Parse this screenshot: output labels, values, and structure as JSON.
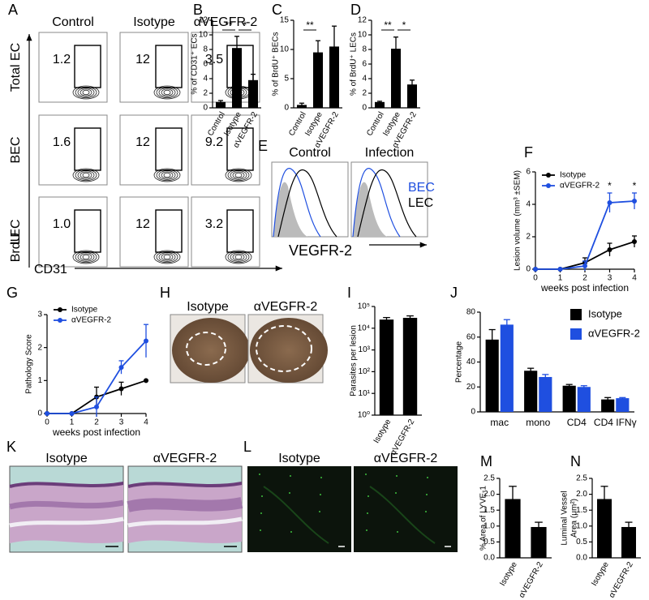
{
  "flow": {
    "panel": "A",
    "columns": [
      "Control",
      "Isotype",
      "αVEGFR-2"
    ],
    "rows": [
      "Total EC",
      "BEC",
      "LEC"
    ],
    "gates": [
      [
        "1.2",
        "12",
        "3.5"
      ],
      [
        "1.6",
        "12",
        "9.2"
      ],
      [
        "1.0",
        "12",
        "3.2"
      ]
    ],
    "y_axis": "BrdU",
    "x_axis": "CD31"
  },
  "histogram": {
    "panel": "E",
    "titles": [
      "Control",
      "Infection"
    ],
    "legend": [
      "BEC",
      "LEC"
    ],
    "x_axis": "VEGFR-2"
  },
  "photos": {
    "panel": "H",
    "labels": [
      "Isotype",
      "αVEGFR-2"
    ]
  },
  "histology": {
    "panel": "K",
    "labels": [
      "Isotype",
      "αVEGFR-2"
    ]
  },
  "fluorescence": {
    "panel": "L",
    "labels": [
      "Isotype",
      "αVEGFR-2"
    ]
  },
  "chart_data": [
    {
      "panel": "B",
      "type": "bar",
      "ylabel": "% of CD31⁺ ECs",
      "categories": [
        "Control",
        "Isotype",
        "αVEGFR-2"
      ],
      "values": [
        0.8,
        8.2,
        3.8
      ],
      "errors": [
        0.2,
        1.6,
        0.8
      ],
      "color": "#000000",
      "ylim": [
        0,
        12
      ],
      "yticks": [
        0,
        2,
        4,
        6,
        8,
        10,
        12
      ],
      "significance": [
        {
          "between": [
            "Control",
            "Isotype"
          ],
          "label": "**"
        },
        {
          "between": [
            "Isotype",
            "αVEGFR-2"
          ],
          "label": "*"
        }
      ]
    },
    {
      "panel": "C",
      "type": "bar",
      "ylabel": "% of BrdU⁺ BECs",
      "categories": [
        "Control",
        "Isotype",
        "αVEGFR-2"
      ],
      "values": [
        0.5,
        9.5,
        10.5
      ],
      "errors": [
        0.3,
        2.0,
        3.5
      ],
      "color": "#000000",
      "ylim": [
        0,
        15
      ],
      "yticks": [
        0,
        5,
        10,
        15
      ],
      "significance": [
        {
          "between": [
            "Control",
            "Isotype"
          ],
          "label": "**"
        }
      ]
    },
    {
      "panel": "D",
      "type": "bar",
      "ylabel": "% of BrdU⁺ LECs",
      "categories": [
        "Control",
        "Isotype",
        "αVEGFR-2"
      ],
      "values": [
        0.8,
        8.1,
        3.2
      ],
      "errors": [
        0.1,
        1.6,
        0.6
      ],
      "color": "#000000",
      "ylim": [
        0,
        12
      ],
      "yticks": [
        0,
        2,
        4,
        6,
        8,
        10,
        12
      ],
      "significance": [
        {
          "between": [
            "Control",
            "Isotype"
          ],
          "label": "**"
        },
        {
          "between": [
            "Isotype",
            "αVEGFR-2"
          ],
          "label": "*"
        }
      ]
    },
    {
      "panel": "F",
      "type": "line",
      "ylabel": "Lesion volume (mm³ ±SEM)",
      "xlabel": "weeks post infection",
      "x": [
        0,
        1,
        2,
        3,
        4
      ],
      "xlim": [
        0,
        4
      ],
      "xticks": [
        0,
        1,
        2,
        3,
        4
      ],
      "ylim": [
        0,
        6
      ],
      "yticks": [
        0,
        2,
        4,
        6
      ],
      "series": [
        {
          "name": "Isotype",
          "color": "#000000",
          "values": [
            0,
            0,
            0.4,
            1.2,
            1.7
          ],
          "errors": [
            0,
            0,
            0.3,
            0.4,
            0.35
          ]
        },
        {
          "name": "αVEGFR-2",
          "color": "#1f4fe0",
          "values": [
            0,
            0,
            0.2,
            4.1,
            4.2
          ],
          "errors": [
            0,
            0,
            0.3,
            0.6,
            0.5
          ]
        }
      ],
      "annotations": [
        {
          "x": 3,
          "label": "*"
        },
        {
          "x": 4,
          "label": "*"
        }
      ]
    },
    {
      "panel": "G",
      "type": "line",
      "ylabel": "Pathology Score",
      "xlabel": "weeks post infection",
      "x": [
        0,
        1,
        2,
        3,
        4
      ],
      "xlim": [
        0,
        4
      ],
      "xticks": [
        0,
        1,
        2,
        3,
        4
      ],
      "ylim": [
        0,
        3
      ],
      "yticks": [
        0,
        1,
        2,
        3
      ],
      "series": [
        {
          "name": "Isotype",
          "color": "#000000",
          "values": [
            0,
            0,
            0.5,
            0.75,
            1.0
          ],
          "errors": [
            0,
            0,
            0.3,
            0.2,
            0
          ]
        },
        {
          "name": "αVEGFR-2",
          "color": "#1f4fe0",
          "values": [
            0,
            0,
            0.2,
            1.4,
            2.2
          ],
          "errors": [
            0,
            0,
            0.3,
            0.2,
            0.5
          ]
        }
      ]
    },
    {
      "panel": "I",
      "type": "bar",
      "ylabel": "Parasites per lesion",
      "categories": [
        "Isotype",
        "αVEGFR-2"
      ],
      "values": [
        25000,
        30000
      ],
      "errors": [
        6000,
        7000
      ],
      "color": "#000000",
      "log_scale": true,
      "ylim": [
        1,
        100000
      ],
      "yticks": [
        {
          "value": 1,
          "label": "10⁰"
        },
        {
          "value": 10,
          "label": "10¹"
        },
        {
          "value": 100,
          "label": "10²"
        },
        {
          "value": 1000,
          "label": "10³"
        },
        {
          "value": 10000,
          "label": "10⁴"
        },
        {
          "value": 100000,
          "label": "10⁵"
        }
      ]
    },
    {
      "panel": "J",
      "type": "bar",
      "ylabel": "Percentage",
      "categories": [
        "mac",
        "mono",
        "CD4",
        "CD4 IFNγ"
      ],
      "series": [
        {
          "name": "Isotype",
          "color": "#000000",
          "values": [
            58,
            33,
            21,
            10
          ],
          "errors": [
            8,
            2,
            1,
            1.5
          ]
        },
        {
          "name": "αVEGFR-2",
          "color": "#1f4fe0",
          "values": [
            70,
            28,
            20,
            11
          ],
          "errors": [
            4,
            2,
            1,
            0.5
          ]
        }
      ],
      "ylim": [
        0,
        80
      ],
      "yticks": [
        0,
        20,
        40,
        60,
        80
      ]
    },
    {
      "panel": "M",
      "type": "bar",
      "ylabel": "% Area of LYVE-1",
      "categories": [
        "Isotype",
        "αVEGFR-2"
      ],
      "values": [
        1.85,
        0.97
      ],
      "errors": [
        0.4,
        0.15
      ],
      "color": "#000000",
      "ylim": [
        0,
        2.5
      ],
      "yticks": [
        {
          "value": 0,
          "label": "0.0"
        },
        0.5,
        {
          "value": 1,
          "label": "1.0"
        },
        1.5,
        {
          "value": 2,
          "label": "2.0"
        },
        2.5
      ]
    },
    {
      "panel": "N",
      "type": "bar",
      "ylabel": [
        "Luminal Vessel",
        "Area (μm²)"
      ],
      "categories": [
        "Isotype",
        "αVEGFR-2"
      ],
      "values": [
        1.85,
        0.97
      ],
      "errors": [
        0.4,
        0.15
      ],
      "color": "#000000",
      "ylim": [
        0,
        2.5
      ],
      "yticks": [
        {
          "value": 0,
          "label": "0.0"
        },
        0.5,
        {
          "value": 1,
          "label": "1.0"
        },
        1.5,
        {
          "value": 2,
          "label": "2.0"
        },
        2.5
      ]
    }
  ]
}
